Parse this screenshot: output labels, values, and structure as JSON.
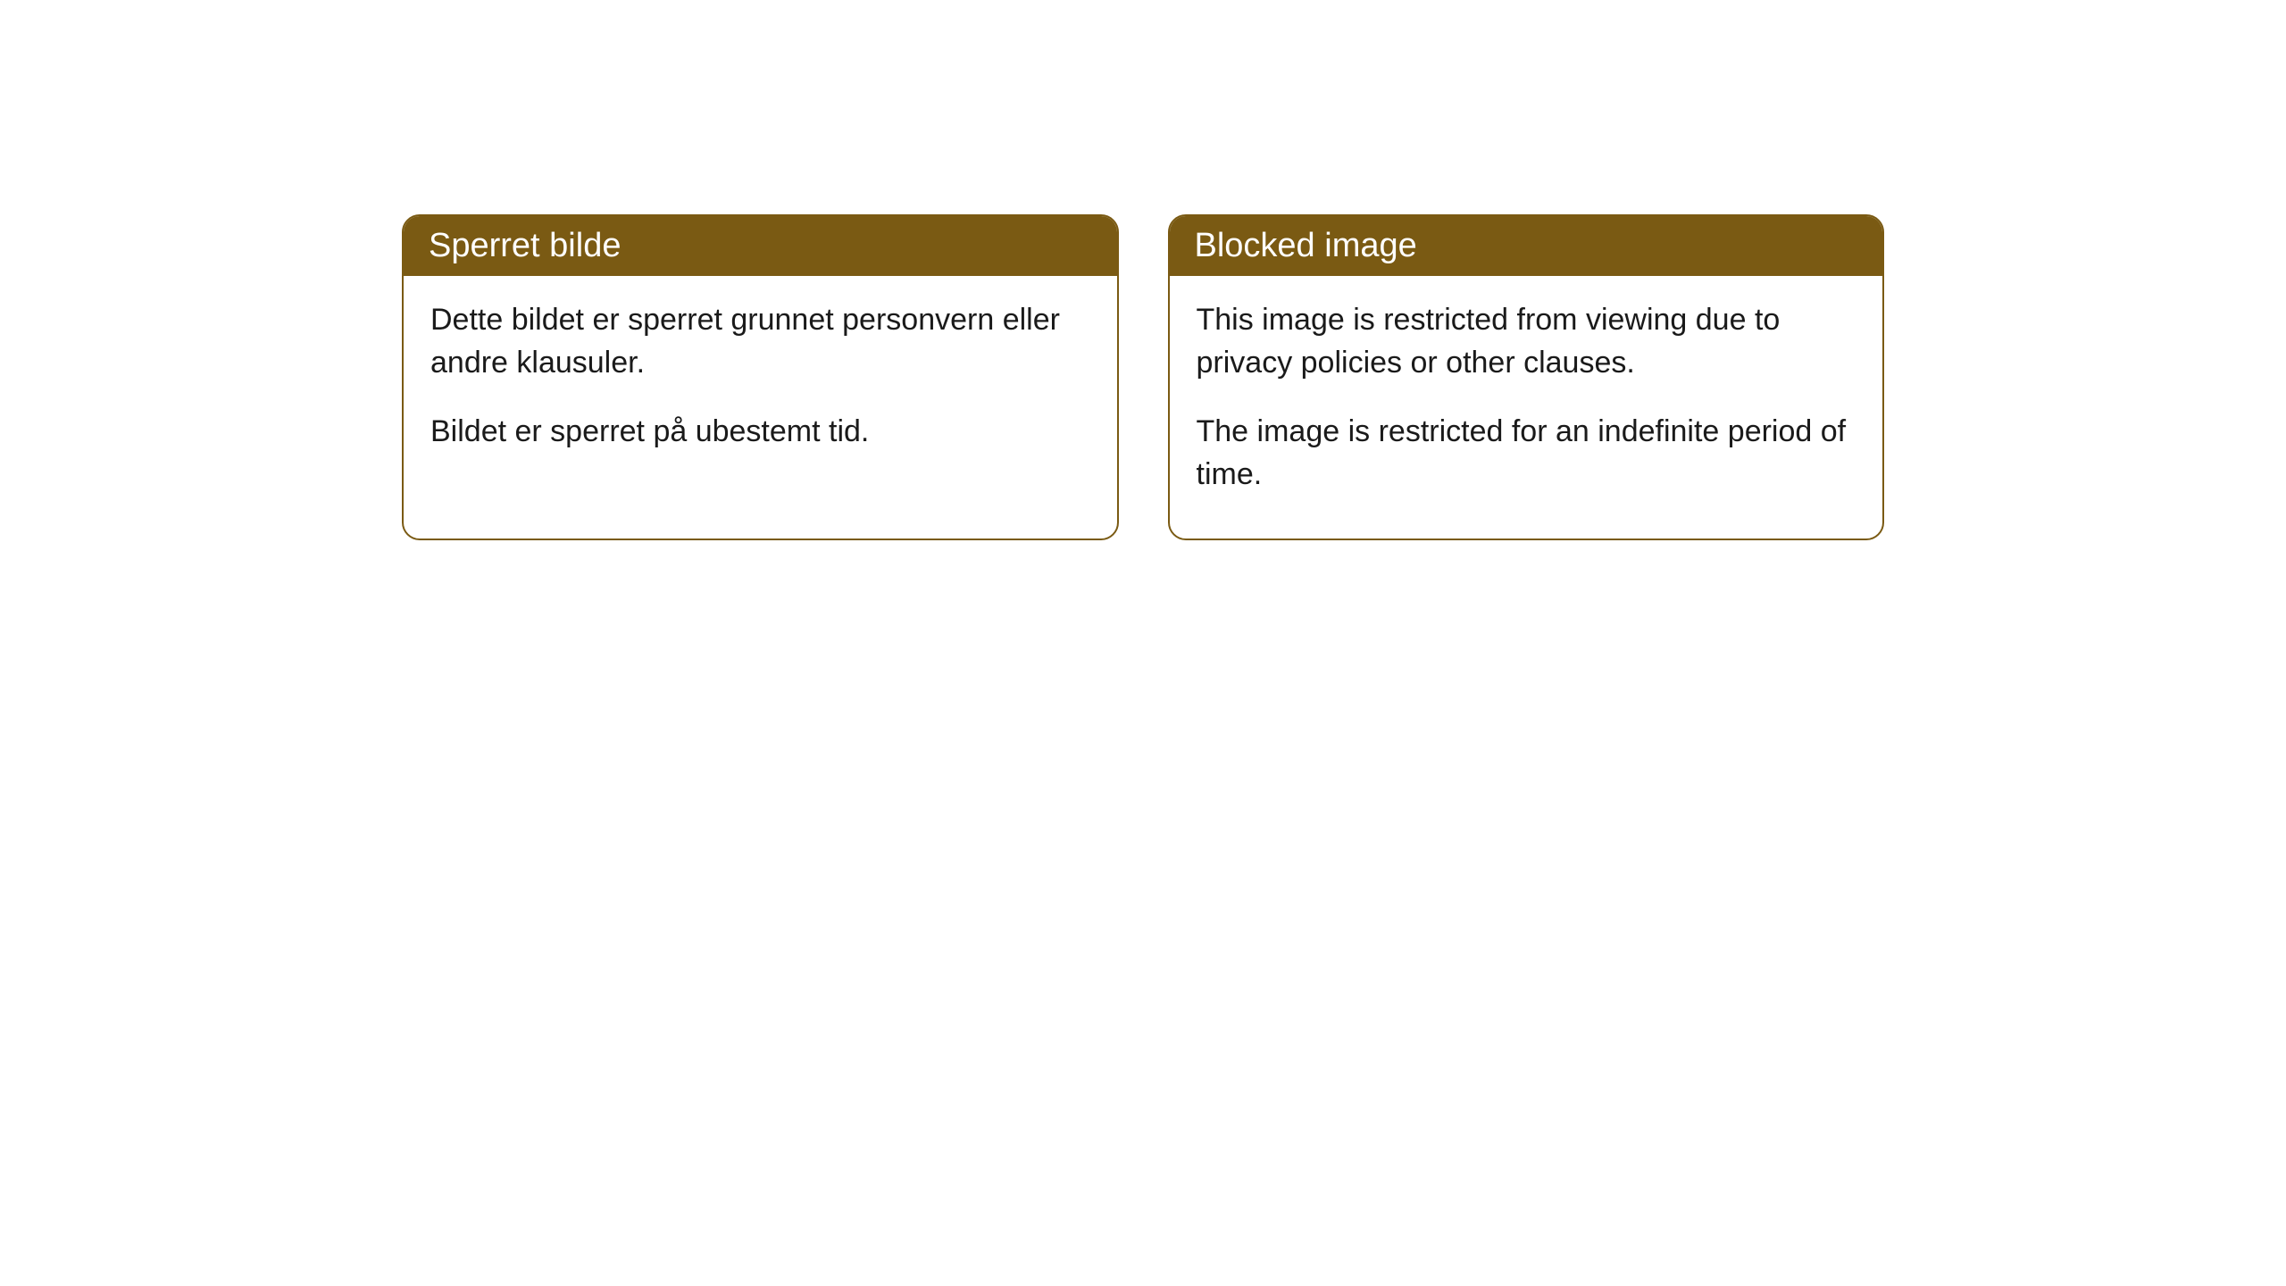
{
  "styling": {
    "header_background_color": "#7a5a13",
    "header_text_color": "#ffffff",
    "border_color": "#7a5a13",
    "body_background_color": "#ffffff",
    "body_text_color": "#1a1a1a",
    "border_radius": "20px",
    "header_font_size": 38,
    "body_font_size": 34
  },
  "cards": [
    {
      "title": "Sperret bilde",
      "paragraph1": "Dette bildet er sperret grunnet personvern eller andre klausuler.",
      "paragraph2": "Bildet er sperret på ubestemt tid."
    },
    {
      "title": "Blocked image",
      "paragraph1": "This image is restricted from viewing due to privacy policies or other clauses.",
      "paragraph2": "The image is restricted for an indefinite period of time."
    }
  ]
}
